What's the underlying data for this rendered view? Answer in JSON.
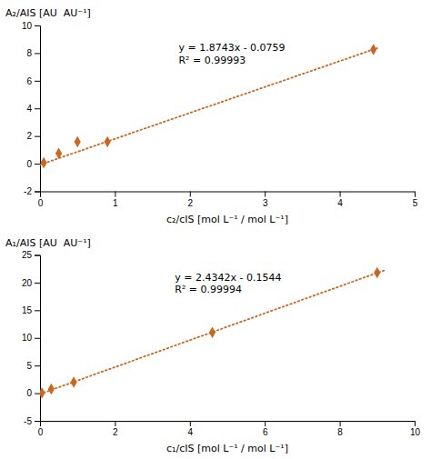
{
  "chart_data": [
    {
      "type": "scatter",
      "x_label": "c₂/cIS [mol L⁻¹ / mol L⁻¹]",
      "y_label": "A₂/AIS [AU  AU⁻¹]",
      "series": [
        {
          "type": "line",
          "x": [
            0.0,
            4.5
          ],
          "values": [
            -0.0759,
            8.35845
          ],
          "color": "#CD6720",
          "line_style": "dotted"
        },
        {
          "type": "scatter",
          "x": [
            0.05,
            0.25,
            0.5,
            0.9,
            4.45
          ],
          "values": [
            0.07,
            0.75,
            1.58,
            1.58,
            8.25
          ],
          "color": "#CD6720",
          "marker": "diamond"
        }
      ],
      "annotations": [
        {
          "x": 1.85,
          "y": 8.8,
          "text": [
            "y = 1.8743x - 0.0759",
            "R² = 0.99993"
          ]
        }
      ],
      "xlim": [
        0,
        5
      ],
      "xticks": [
        0,
        1,
        2,
        3,
        4,
        5
      ],
      "ylim": [
        -2,
        10
      ],
      "yticks": [
        -2,
        0,
        2,
        4,
        6,
        8,
        10
      ],
      "grid": false
    },
    {
      "type": "scatter",
      "x_label": "c₁/cIS [mol L⁻¹ / mol L⁻¹]",
      "y_label": "A₁/AIS [AU  AU⁻¹]",
      "series": [
        {
          "type": "line",
          "x": [
            0.0,
            9.2
          ],
          "values": [
            -0.1544,
            22.24024
          ],
          "color": "#CD6720",
          "line_style": "dotted"
        },
        {
          "type": "scatter",
          "x": [
            0.05,
            0.3,
            0.9,
            4.6,
            9.0
          ],
          "values": [
            0.05,
            0.75,
            2.0,
            11.0,
            21.8
          ],
          "color": "#CD6720",
          "marker": "diamond"
        }
      ],
      "annotations": [
        {
          "x": 3.6,
          "y": 22.0,
          "text": [
            "y = 2.4342x - 0.1544",
            "R² = 0.99994"
          ]
        }
      ],
      "xlim": [
        0,
        10
      ],
      "xticks": [
        0,
        2,
        4,
        6,
        8,
        10
      ],
      "ylim": [
        -5,
        25
      ],
      "yticks": [
        -5,
        0,
        5,
        10,
        15,
        20,
        25
      ],
      "grid": false
    }
  ]
}
